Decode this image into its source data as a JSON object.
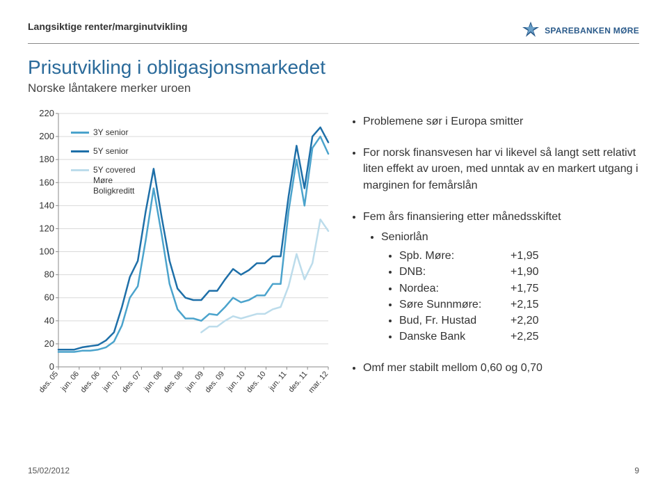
{
  "header": {
    "section_label": "Langsiktige renter/marginutvikling",
    "bank_name": "SPAREBANKEN MØRE"
  },
  "title": "Prisutvikling i obligasjonsmarkedet",
  "subtitle": "Norske låntakere merker uroen",
  "chart": {
    "type": "line",
    "ylim": [
      0,
      220
    ],
    "ytick_step": 20,
    "yticks": [
      0,
      20,
      40,
      60,
      80,
      100,
      120,
      140,
      160,
      180,
      200,
      220
    ],
    "xlabels": [
      "des. 05",
      "jun. 06",
      "des. 06",
      "jun. 07",
      "des. 07",
      "jun. 08",
      "des. 08",
      "jun. 09",
      "des. 09",
      "jun. 10",
      "des. 10",
      "jun. 11",
      "des. 11",
      "mar. 12"
    ],
    "background_color": "#ffffff",
    "grid_color": "#d9d9d9",
    "axis_color": "#8a8a8a",
    "label_fontsize": 13,
    "xlabel_fontsize": 11,
    "line_width": 2.5,
    "legend": [
      {
        "label": "3Y senior",
        "color": "#4ba3cc"
      },
      {
        "label": "5Y senior",
        "color": "#1e6fa8"
      },
      {
        "label": "5Y covered Møre Boligkreditt",
        "color": "#bcdceb"
      }
    ],
    "series": {
      "s3y": {
        "color": "#4ba3cc",
        "values": [
          13,
          13,
          13,
          14,
          14,
          15,
          17,
          22,
          36,
          60,
          70,
          110,
          155,
          115,
          72,
          50,
          42,
          42,
          40,
          46,
          45,
          52,
          60,
          56,
          58,
          62,
          62,
          72,
          72,
          135,
          180,
          140,
          190,
          200,
          185
        ]
      },
      "s5y": {
        "color": "#1e6fa8",
        "values": [
          15,
          15,
          15,
          17,
          18,
          19,
          23,
          30,
          52,
          78,
          92,
          135,
          172,
          130,
          92,
          68,
          60,
          58,
          58,
          66,
          66,
          76,
          85,
          80,
          84,
          90,
          90,
          96,
          96,
          148,
          192,
          155,
          200,
          208,
          195
        ]
      },
      "cov5y": {
        "color": "#bcdceb",
        "values": [
          null,
          null,
          null,
          null,
          null,
          null,
          null,
          null,
          null,
          null,
          null,
          null,
          null,
          null,
          null,
          null,
          null,
          null,
          30,
          35,
          35,
          40,
          44,
          42,
          44,
          46,
          46,
          50,
          52,
          70,
          98,
          76,
          90,
          128,
          118
        ]
      }
    }
  },
  "bullets": {
    "b1": "Problemene sør i Europa smitter",
    "b2": "For norsk finansvesen har vi likevel så langt sett relativt liten effekt av uroen, med unntak av en markert utgang i marginen for femårslån",
    "b3": "Fem års finansiering etter månedsskiftet",
    "b3_sub1": "Seniorlån",
    "rates": [
      {
        "name": "Spb. Møre:",
        "val": "+1,95"
      },
      {
        "name": "DNB:",
        "val": "+1,90"
      },
      {
        "name": "Nordea:",
        "val": "+1,75"
      },
      {
        "name": "Søre Sunnmøre:",
        "val": "+2,15"
      },
      {
        "name": "Bud, Fr. Hustad",
        "val": "+2,20"
      },
      {
        "name": "Danske Bank",
        "val": "+2,25"
      }
    ],
    "b4": "Omf mer stabilt mellom 0,60 og 0,70"
  },
  "footer": {
    "date": "15/02/2012",
    "page": "9"
  }
}
